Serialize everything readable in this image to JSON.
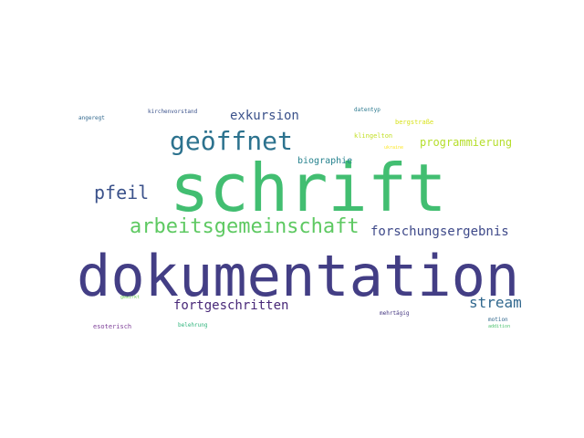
{
  "words": [
    {
      "text": "schrift",
      "color": "#42be71"
    },
    {
      "text": "dokumentation",
      "color": "#433e85"
    },
    {
      "text": "geöffnet",
      "color": "#2c728e"
    },
    {
      "text": "arbeitsgemeinschaft",
      "color": "#5ec962"
    },
    {
      "text": "pfeil",
      "color": "#3b528b"
    },
    {
      "text": "stream",
      "color": "#31688e"
    },
    {
      "text": "forschungsergebnis",
      "color": "#3e4989"
    },
    {
      "text": "fortgeschritten",
      "color": "#482878"
    },
    {
      "text": "exkursion",
      "color": "#3b528b"
    },
    {
      "text": "programmierung",
      "color": "#b5de2b"
    },
    {
      "text": "biographie",
      "color": "#26828e"
    },
    {
      "text": "bergstraße",
      "color": "#d8e219"
    },
    {
      "text": "klingelton",
      "color": "#c2df23"
    },
    {
      "text": "datentyp",
      "color": "#2a788e"
    },
    {
      "text": "kirchenvorstand",
      "color": "#3b528b"
    },
    {
      "text": "angeregt",
      "color": "#31688e"
    },
    {
      "text": "esoterisch",
      "color": "#7e3f98"
    },
    {
      "text": "belehrung",
      "color": "#2fb47c"
    },
    {
      "text": "mehrtägig",
      "color": "#453781"
    },
    {
      "text": "motion",
      "color": "#31688e"
    },
    {
      "text": "addition",
      "color": "#4ac16d"
    },
    {
      "text": "gewirkt",
      "color": "#6ece58"
    },
    {
      "text": "ukraine",
      "color": "#fde725"
    }
  ]
}
